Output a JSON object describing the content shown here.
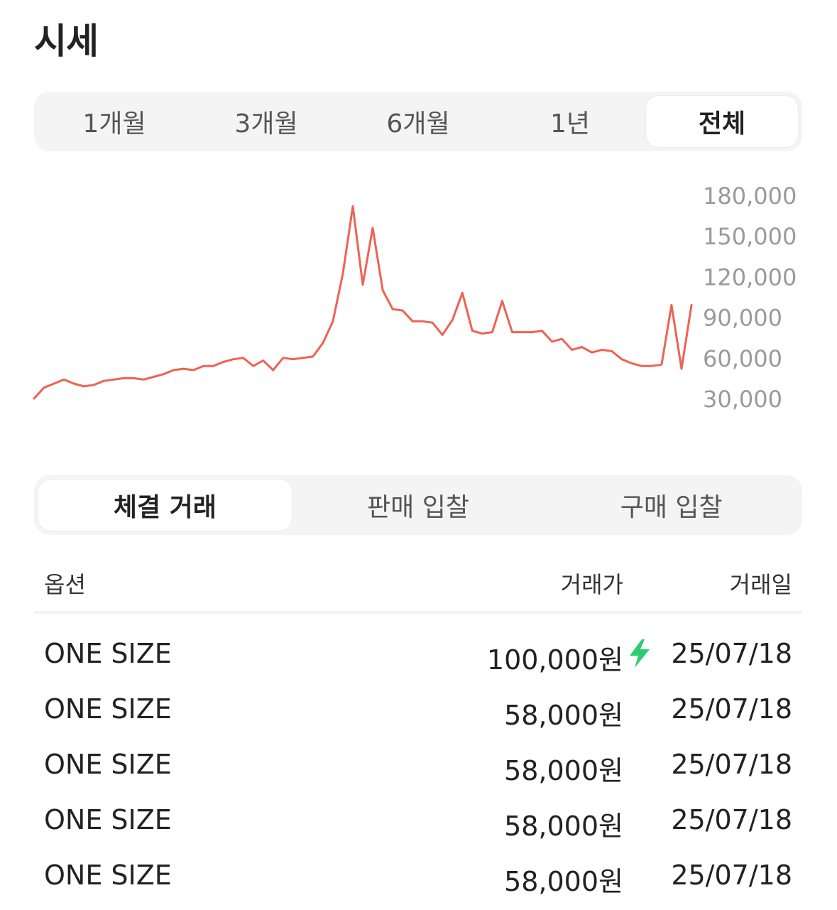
{
  "title": "시세",
  "period_tabs": [
    {
      "label": "1개월",
      "active": false
    },
    {
      "label": "3개월",
      "active": false
    },
    {
      "label": "6개월",
      "active": false
    },
    {
      "label": "1년",
      "active": false
    },
    {
      "label": "전체",
      "active": true
    }
  ],
  "chart_data": {
    "type": "line",
    "line_color": "#ef6253",
    "ylim": [
      30000,
      180000
    ],
    "yticks": [
      "180,000",
      "150,000",
      "120,000",
      "90,000",
      "60,000",
      "30,000"
    ],
    "ytick_values": [
      180000,
      150000,
      120000,
      90000,
      60000,
      30000
    ],
    "values": [
      30000,
      38000,
      41000,
      44000,
      41000,
      39000,
      40000,
      43000,
      44000,
      45000,
      45000,
      44000,
      46000,
      48000,
      51000,
      52000,
      51000,
      54000,
      54000,
      57000,
      59000,
      60000,
      54000,
      58000,
      51000,
      60000,
      59000,
      60000,
      61000,
      71000,
      87000,
      122000,
      172000,
      114000,
      156000,
      110000,
      96000,
      95000,
      87000,
      87000,
      86000,
      77000,
      88000,
      108000,
      80000,
      78000,
      79000,
      102000,
      79000,
      79000,
      79000,
      80000,
      72000,
      74000,
      66000,
      68000,
      64000,
      66000,
      65000,
      59000,
      56000,
      54000,
      54000,
      55000,
      99000,
      52000,
      99000
    ]
  },
  "trade_tabs": [
    {
      "label": "체결 거래",
      "active": true
    },
    {
      "label": "판매 입찰",
      "active": false
    },
    {
      "label": "구매 입찰",
      "active": false
    }
  ],
  "table": {
    "headers": {
      "option": "옵션",
      "price": "거래가",
      "date": "거래일"
    },
    "accent_icon_color": "#2ecc71",
    "rows": [
      {
        "option": "ONE SIZE",
        "price": "100,000원",
        "date": "25/07/18",
        "quick": true
      },
      {
        "option": "ONE SIZE",
        "price": "58,000원",
        "date": "25/07/18",
        "quick": false
      },
      {
        "option": "ONE SIZE",
        "price": "58,000원",
        "date": "25/07/18",
        "quick": false
      },
      {
        "option": "ONE SIZE",
        "price": "58,000원",
        "date": "25/07/18",
        "quick": false
      },
      {
        "option": "ONE SIZE",
        "price": "58,000원",
        "date": "25/07/18",
        "quick": false
      }
    ]
  }
}
